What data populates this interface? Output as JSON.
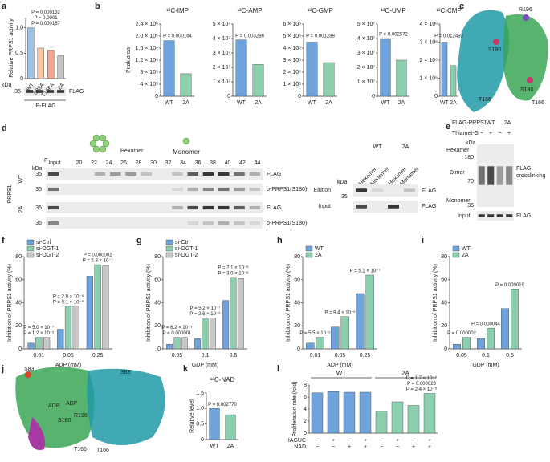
{
  "chart_data": [
    {
      "type": "bar",
      "label": "a",
      "ylabel": "Relative PRPS1 activity",
      "categories": [
        "WT",
        "S83A",
        "T166A",
        "2A"
      ],
      "values": [
        1.0,
        0.6,
        0.56,
        0.45
      ],
      "colors": [
        "#9cc3e6",
        "#f8c9a0",
        "#f0a58e",
        "#c4c4c4"
      ],
      "ylim": [
        0,
        1.2
      ],
      "yticks": [
        0,
        0.5,
        {
          "value": 1,
          "label": "1.0"
        }
      ],
      "annotations": [
        [
          "P = 0.000132",
          "P = 0.0001",
          "P = 0.000167"
        ]
      ],
      "blot_kda": "kDa",
      "blot_marker": "35",
      "blot_label": "FLAG",
      "blot_caption": "IP-FLAG"
    },
    {
      "type": "bar",
      "label": "b",
      "title": "¹³C-IMP",
      "ylabel": "Peak area",
      "categories": [
        "WT",
        "2A"
      ],
      "values": [
        1850000,
        750000
      ],
      "colors": [
        "#6fa3dc",
        "#8ccfae"
      ],
      "ylim": [
        0,
        2400000
      ],
      "yticks": [
        0,
        {
          "value": 400000,
          "label": "4 × 10⁵"
        },
        {
          "value": 800000,
          "label": "8 × 10⁵"
        },
        {
          "value": 1200000,
          "label": "1.2 × 10⁶"
        },
        {
          "value": 1600000,
          "label": "1.6 × 10⁶"
        },
        {
          "value": 2000000,
          "label": "2.0 × 10⁶"
        },
        {
          "value": 2400000,
          "label": "2.4 × 10⁶"
        }
      ],
      "annotations": [
        [
          "P = 0.000164"
        ]
      ]
    },
    {
      "type": "bar",
      "title": "¹³C-AMP",
      "categories": [
        "WT",
        "2A"
      ],
      "values": [
        39000000,
        22000000
      ],
      "colors": [
        "#6fa3dc",
        "#8ccfae"
      ],
      "ylim": [
        0,
        50000000
      ],
      "yticks": [
        0,
        {
          "value": 10000000,
          "label": "1 × 10⁷"
        },
        {
          "value": 20000000,
          "label": "2 × 10⁷"
        },
        {
          "value": 30000000,
          "label": "3 × 10⁷"
        },
        {
          "value": 40000000,
          "label": "4 × 10⁷"
        },
        {
          "value": 50000000,
          "label": "5 × 10⁷"
        }
      ],
      "annotations": [
        [
          "P = 0.003298"
        ]
      ]
    },
    {
      "type": "bar",
      "title": "¹³C-GMP",
      "categories": [
        "WT",
        "2A"
      ],
      "values": [
        4500000,
        2800000
      ],
      "colors": [
        "#6fa3dc",
        "#8ccfae"
      ],
      "ylim": [
        0,
        6000000
      ],
      "yticks": [
        0,
        {
          "value": 1000000,
          "label": "1 × 10⁶"
        },
        {
          "value": 2000000,
          "label": "2 × 10⁶"
        },
        {
          "value": 3000000,
          "label": "3 × 10⁶"
        },
        {
          "value": 4000000,
          "label": "4 × 10⁶"
        },
        {
          "value": 5000000,
          "label": "5 × 10⁶"
        },
        {
          "value": 6000000,
          "label": "6 × 10⁶"
        }
      ],
      "annotations": [
        [
          "P = 0.001288"
        ]
      ]
    },
    {
      "type": "bar",
      "title": "¹³C-UMP",
      "categories": [
        "WT",
        "2A"
      ],
      "values": [
        40000000,
        25000000
      ],
      "colors": [
        "#6fa3dc",
        "#8ccfae"
      ],
      "ylim": [
        0,
        50000000
      ],
      "yticks": [
        0,
        {
          "value": 10000000,
          "label": "1 × 10⁷"
        },
        {
          "value": 20000000,
          "label": "2 × 10⁷"
        },
        {
          "value": 30000000,
          "label": "3 × 10⁷"
        },
        {
          "value": 40000000,
          "label": "4 × 10⁷"
        },
        {
          "value": 50000000,
          "label": "5 × 10⁷"
        }
      ],
      "annotations": [
        [
          "P = 0.002572"
        ]
      ]
    },
    {
      "type": "bar",
      "title": "¹³C-CMP",
      "categories": [
        "WT",
        "2A"
      ],
      "values": [
        3000000,
        1700000
      ],
      "colors": [
        "#6fa3dc",
        "#8ccfae"
      ],
      "ylim": [
        0,
        4000000
      ],
      "yticks": [
        0,
        {
          "value": 1000000,
          "label": "1 × 10⁶"
        },
        {
          "value": 2000000,
          "label": "2 × 10⁶"
        },
        {
          "value": 3000000,
          "label": "3 × 10⁶"
        },
        {
          "value": 4000000,
          "label": "4 × 10⁶"
        }
      ],
      "annotations": [
        [
          "P = 0.012493"
        ]
      ]
    },
    {
      "type": "bar",
      "label": "f",
      "ylabel": "Inhibition of PRPS1 activity (%)",
      "xlabel": "ADP (mM)",
      "categories": [
        "0.01",
        "0.05",
        "0.25"
      ],
      "series": [
        {
          "name": "si-Ctrl",
          "color": "#6fa3dc",
          "values": [
            5,
            17,
            63
          ]
        },
        {
          "name": "si-OGT-1",
          "color": "#8ccfae",
          "values": [
            10,
            37,
            73
          ]
        },
        {
          "name": "si-OGT-2",
          "color": "#c8c8c8",
          "values": [
            10,
            37,
            72
          ]
        }
      ],
      "ylim": [
        0,
        80
      ],
      "yticks": [
        0,
        20,
        40,
        60,
        80
      ],
      "annotations": [
        [
          "P = 5.0 × 10⁻⁷",
          "P = 1.2 × 10⁻⁵"
        ],
        [
          "P = 2.9 × 10⁻⁵",
          "P = 9.1 × 10⁻⁶"
        ],
        [
          "P = 0.000002",
          "P = 5.8 × 10⁻⁷"
        ]
      ]
    },
    {
      "type": "bar",
      "label": "g",
      "ylabel": "Inhibition of PRPS1 activity (%)",
      "xlabel": "GDP (mM)",
      "categories": [
        "0.05",
        "0.1",
        "0.5"
      ],
      "series": [
        {
          "name": "si-Ctrl",
          "color": "#6fa3dc",
          "values": [
            4,
            9,
            42
          ]
        },
        {
          "name": "si-OGT-1",
          "color": "#8ccfae",
          "values": [
            10,
            26,
            62
          ]
        },
        {
          "name": "si-OGT-2",
          "color": "#c8c8c8",
          "values": [
            10,
            27,
            61
          ]
        }
      ],
      "ylim": [
        0,
        80
      ],
      "yticks": [
        0,
        20,
        40,
        60,
        80
      ],
      "annotations": [
        [
          "P = 6.2 × 10⁻⁵",
          "P = 0.000001"
        ],
        [
          "P = 5.2 × 10⁻⁷",
          "P = 2.6 × 10⁻⁵"
        ],
        [
          "P = 2.1 × 10⁻⁶",
          "P = 3.0 × 10⁻⁶"
        ]
      ]
    },
    {
      "type": "bar",
      "label": "h",
      "ylabel": "Inhibition of PRPS1 activity (%)",
      "xlabel": "ADP (mM)",
      "categories": [
        "0.01",
        "0.05",
        "0.25"
      ],
      "series": [
        {
          "name": "WT",
          "color": "#6fa3dc",
          "values": [
            5,
            19,
            48
          ]
        },
        {
          "name": "2A",
          "color": "#8ccfae",
          "values": [
            10,
            28,
            64
          ]
        }
      ],
      "ylim": [
        0,
        80
      ],
      "yticks": [
        0,
        20,
        40,
        60,
        80
      ],
      "annotations": [
        [
          "P = 5.5 × 10⁻⁵"
        ],
        [
          "P = 9.4 × 10⁻⁵"
        ],
        [
          "P = 5.1 × 10⁻⁷"
        ]
      ]
    },
    {
      "type": "bar",
      "label": "i",
      "ylabel": "Inhibition of PRPS1 activity (%)",
      "xlabel": "GDP (mM)",
      "categories": [
        "0.05",
        "0.1",
        "0.5"
      ],
      "series": [
        {
          "name": "WT",
          "color": "#6fa3dc",
          "values": [
            4,
            9,
            35
          ]
        },
        {
          "name": "2A",
          "color": "#8ccfae",
          "values": [
            10,
            18,
            52
          ]
        }
      ],
      "ylim": [
        0,
        80
      ],
      "yticks": [
        0,
        20,
        40,
        60,
        80
      ],
      "annotations": [
        [
          "P = 0.000002"
        ],
        [
          "P = 0.000044"
        ],
        [
          "P = 0.000019"
        ]
      ]
    },
    {
      "type": "bar",
      "label": "k",
      "title": "¹³C-NAD",
      "ylabel": "Relative level",
      "categories": [
        "WT",
        "2A"
      ],
      "values": [
        1.0,
        0.8
      ],
      "colors": [
        "#6fa3dc",
        "#8ccfae"
      ],
      "ylim": [
        0,
        1.5
      ],
      "yticks": [
        0,
        0.5,
        {
          "value": 1,
          "label": "1.0"
        },
        1.5
      ],
      "annotations": [
        [
          "P = 0.002770"
        ]
      ]
    },
    {
      "type": "bar",
      "label": "l",
      "ylabel": "Proliferation rate (fold)",
      "categories": [
        null,
        null,
        null,
        null
      ],
      "series": [
        {
          "name": "WT",
          "color": "#6fa3dc",
          "values": [
            6.7,
            6.9,
            6.8,
            6.8
          ]
        },
        {
          "name": "2A",
          "color": "#8ccfae",
          "values": [
            3.7,
            5.2,
            4.6,
            6.6
          ]
        }
      ],
      "ylim": [
        0,
        8
      ],
      "yticks": [
        0,
        2,
        4,
        6,
        8
      ],
      "annotations": [
        [],
        [
          "P = 1.7 × 10⁻⁹",
          "P = 0.000023",
          "P = 2.4 × 10⁻⁵"
        ]
      ],
      "conditions": [
        {
          "name": "IAGUC",
          "signs": [
            "−",
            "+",
            "−",
            "+"
          ]
        },
        {
          "name": "NAD",
          "signs": [
            "−",
            "−",
            "+",
            "+"
          ]
        }
      ]
    }
  ],
  "panel_c": {
    "label": "c",
    "sites": [
      "R196",
      "S180",
      "T166",
      "S180",
      "T166"
    ]
  },
  "panel_d": {
    "label": "d",
    "hexamer": "Hexamer",
    "monomer": "Monomer",
    "fraction_header": "F",
    "fractions": [
      "Input",
      "20",
      "22",
      "24",
      "26",
      "28",
      "30",
      "32",
      "34",
      "36",
      "38",
      "40",
      "42",
      "44"
    ],
    "group": "PRPS1",
    "genotypes": [
      "WT",
      "2A"
    ],
    "kda": "kDa",
    "markers": [
      "35",
      "35",
      "35",
      "35"
    ],
    "blot_labels": [
      "FLAG",
      "p-PRPS1(S180)",
      "FLAG",
      "p-PRPS1(S180)"
    ],
    "side_genotypes": [
      "WT",
      "2A"
    ],
    "side_lanes": [
      "Hexamer",
      "Monomer",
      "Hexamer",
      "Monomer"
    ],
    "side_kda": "kDa",
    "side_marker": "35",
    "side_rows": [
      "Elution",
      "Input"
    ],
    "side_blots": [
      "FLAG",
      "FLAG"
    ]
  },
  "panel_e": {
    "label": "e",
    "construct": "FLAG-PRPS1",
    "genotypes": [
      "WT",
      "2A"
    ],
    "treatment": "Thiamet-G",
    "signs": [
      "−",
      "+",
      "−",
      "+"
    ],
    "kda": "kDa",
    "markers": [
      "180",
      "70",
      "35"
    ],
    "bands": [
      "Hexamer",
      "Dimer",
      "Monomer"
    ],
    "blot_label": [
      "FLAG",
      "crosslinking"
    ],
    "input": "Input",
    "input_blot": "FLAG"
  },
  "panel_j": {
    "label": "j",
    "sites": [
      "S83",
      "S83",
      "ADP",
      "ADP",
      "R196",
      "S180",
      "T166",
      "T166"
    ]
  }
}
